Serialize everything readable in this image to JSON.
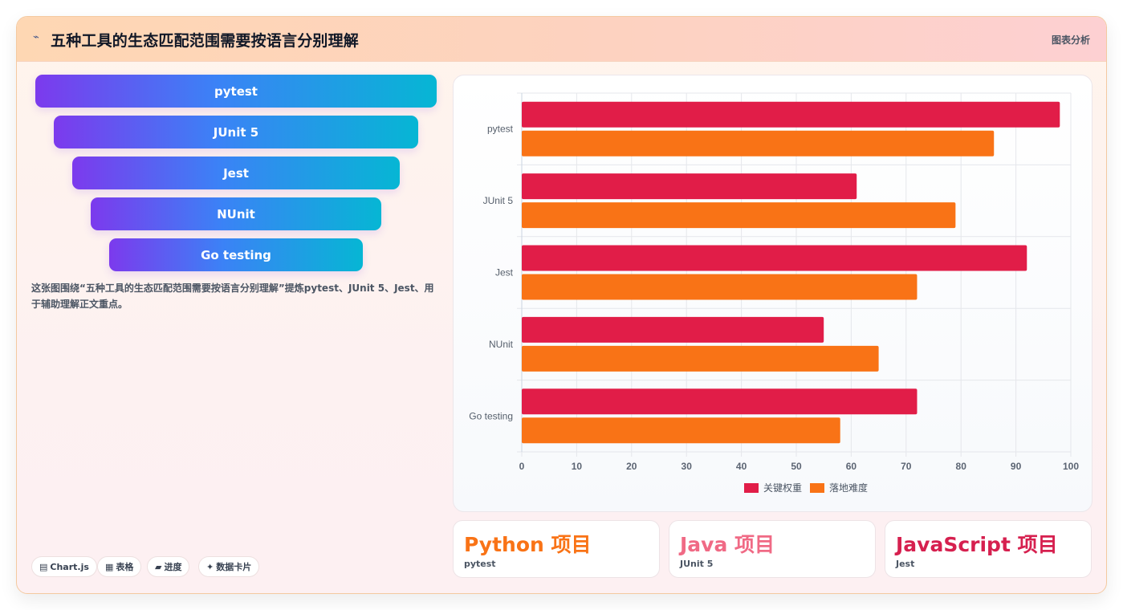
{
  "header": {
    "icon": "sparkle-icon",
    "title": "五种工具的生态匹配范围需要按语言分别理解",
    "action_label": "图表分析"
  },
  "funnel": {
    "steps": [
      "pytest",
      "JUnit 5",
      "Jest",
      "NUnit",
      "Go testing"
    ]
  },
  "description": "这张图围绕“五种工具的生态匹配范围需要按语言分别理解”提炼pytest、JUnit 5、Jest、用于辅助理解正文重点。",
  "chips": [
    {
      "icon": "chart-icon",
      "glyph": "▤",
      "label": "Chart.js"
    },
    {
      "icon": "table-icon",
      "glyph": "▦",
      "label": "表格"
    },
    {
      "icon": "progress-icon",
      "glyph": "▰",
      "label": "进度"
    },
    {
      "icon": "card-icon",
      "glyph": "✦",
      "label": "数据卡片"
    }
  ],
  "chart_data": {
    "type": "bar",
    "orientation": "horizontal",
    "categories": [
      "pytest",
      "JUnit 5",
      "Jest",
      "NUnit",
      "Go testing"
    ],
    "series": [
      {
        "name": "关键权重",
        "color": "#e11d48",
        "values": [
          98,
          61,
          92,
          55,
          72
        ]
      },
      {
        "name": "落地难度",
        "color": "#f97316",
        "values": [
          86,
          79,
          72,
          65,
          58
        ]
      }
    ],
    "xlim": [
      0,
      100
    ],
    "xticks": [
      "0",
      "10",
      "20",
      "30",
      "40",
      "50",
      "60",
      "70",
      "80",
      "90",
      "100"
    ],
    "grid": true,
    "legend_position": "bottom"
  },
  "stats": [
    {
      "value": "Python 项目",
      "label": "pytest",
      "color": "#f97316"
    },
    {
      "value": "Java 项目",
      "label": "JUnit 5",
      "color": "#f06a85"
    },
    {
      "value": "JavaScript 项目",
      "label": "Jest",
      "color": "#d6204f"
    }
  ]
}
